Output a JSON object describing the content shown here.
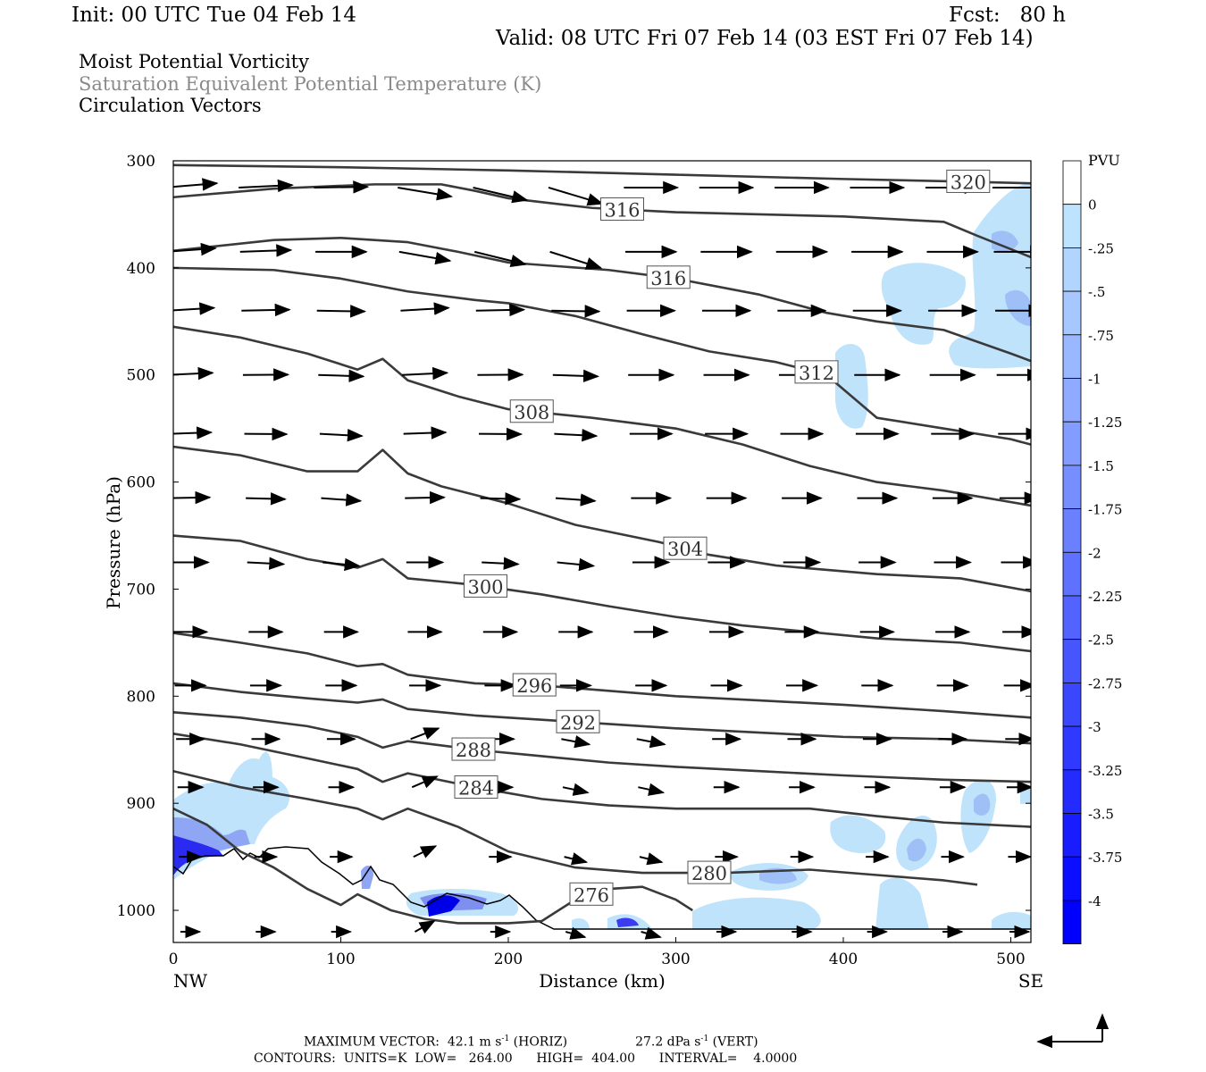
{
  "header": {
    "init": "Init: 00 UTC Tue 04 Feb 14",
    "fcst": "Fcst:   80 h",
    "valid": "Valid: 08 UTC Fri 07 Feb 14 (03 EST Fri 07 Feb 14)",
    "field1": "Moist Potential Vorticity",
    "field2": "Saturation Equivalent Potential Temperature (K)",
    "field3": "Circulation Vectors"
  },
  "footer": {
    "line1a": "MAXIMUM VECTOR:  42.1 m s",
    "line1b": " (HORIZ)",
    "line1c": "27.2 dPa s",
    "line1d": " (VERT)",
    "exp": "-1",
    "line2": "CONTOURS:  UNITS=K  LOW=   264.00      HIGH=  404.00      INTERVAL=    4.0000"
  },
  "colors": {
    "contour": "#3a3a3a",
    "pv_light": "#bfe3fb",
    "pv_dark": "#0000ff"
  },
  "chart_data": {
    "type": "heatmap",
    "xlabel": "Distance (km)",
    "ylabel": "Pressure (hPa)",
    "xlim": [
      0,
      512
    ],
    "ylim": [
      1030,
      300
    ],
    "x_ticks": [
      0,
      100,
      200,
      300,
      400,
      500
    ],
    "y_ticks": [
      300,
      400,
      500,
      600,
      700,
      800,
      900,
      1000
    ],
    "x_end_labels": [
      "NW",
      "SE"
    ],
    "colorbar": {
      "unit": "PVU",
      "levels": [
        "0",
        "-.25",
        "-.5",
        "-.75",
        "-1",
        "-1.25",
        "-1.5",
        "-1.75",
        "-2",
        "-2.25",
        "-2.5",
        "-2.75",
        "-3",
        "-3.25",
        "-3.5",
        "-3.75",
        "-4"
      ]
    },
    "contours": [
      {
        "level": 320,
        "label": "320",
        "points": [
          [
            0,
            304
          ],
          [
            100,
            306
          ],
          [
            200,
            309
          ],
          [
            300,
            313
          ],
          [
            400,
            317
          ],
          [
            460,
            319
          ],
          [
            512,
            321
          ]
        ]
      },
      {
        "level": 316,
        "label": "316",
        "points": [
          [
            0,
            334
          ],
          [
            60,
            326
          ],
          [
            120,
            322
          ],
          [
            160,
            322
          ],
          [
            180,
            328
          ],
          [
            200,
            335
          ],
          [
            250,
            344
          ],
          [
            300,
            348
          ],
          [
            350,
            350
          ],
          [
            400,
            352
          ],
          [
            460,
            357
          ],
          [
            480,
            370
          ],
          [
            512,
            390
          ]
        ]
      },
      {
        "level": 316,
        "label": "316",
        "points": [
          [
            0,
            384
          ],
          [
            60,
            374
          ],
          [
            100,
            372
          ],
          [
            140,
            376
          ],
          [
            170,
            385
          ],
          [
            200,
            395
          ],
          [
            260,
            402
          ],
          [
            300,
            410
          ],
          [
            350,
            425
          ],
          [
            390,
            442
          ],
          [
            420,
            450
          ],
          [
            460,
            458
          ],
          [
            500,
            480
          ],
          [
            512,
            487
          ]
        ]
      },
      {
        "level": 312,
        "label": "312",
        "points": [
          [
            0,
            400
          ],
          [
            60,
            402
          ],
          [
            100,
            410
          ],
          [
            140,
            422
          ],
          [
            180,
            430
          ],
          [
            200,
            433
          ],
          [
            240,
            445
          ],
          [
            280,
            462
          ],
          [
            320,
            478
          ],
          [
            360,
            488
          ],
          [
            390,
            500
          ],
          [
            420,
            540
          ],
          [
            460,
            550
          ],
          [
            500,
            560
          ],
          [
            512,
            565
          ]
        ]
      },
      {
        "level": 308,
        "label": "308",
        "points": [
          [
            0,
            455
          ],
          [
            40,
            465
          ],
          [
            80,
            480
          ],
          [
            110,
            495
          ],
          [
            125,
            485
          ],
          [
            140,
            505
          ],
          [
            170,
            520
          ],
          [
            200,
            532
          ],
          [
            250,
            540
          ],
          [
            300,
            550
          ],
          [
            340,
            565
          ],
          [
            380,
            585
          ],
          [
            420,
            600
          ],
          [
            460,
            608
          ],
          [
            512,
            622
          ]
        ]
      },
      {
        "level": 304,
        "label": "304",
        "points": [
          [
            0,
            567
          ],
          [
            40,
            575
          ],
          [
            80,
            590
          ],
          [
            110,
            590
          ],
          [
            125,
            570
          ],
          [
            140,
            592
          ],
          [
            160,
            604
          ],
          [
            200,
            620
          ],
          [
            240,
            640
          ],
          [
            290,
            656
          ],
          [
            320,
            668
          ],
          [
            360,
            678
          ],
          [
            420,
            686
          ],
          [
            470,
            690
          ],
          [
            512,
            702
          ]
        ]
      },
      {
        "level": 300,
        "label": "300",
        "points": [
          [
            0,
            650
          ],
          [
            40,
            655
          ],
          [
            80,
            672
          ],
          [
            110,
            680
          ],
          [
            125,
            672
          ],
          [
            140,
            690
          ],
          [
            180,
            696
          ],
          [
            220,
            705
          ],
          [
            260,
            716
          ],
          [
            300,
            726
          ],
          [
            340,
            734
          ],
          [
            380,
            740
          ],
          [
            420,
            746
          ],
          [
            470,
            750
          ],
          [
            512,
            758
          ]
        ]
      },
      {
        "level": 296,
        "label": "296",
        "points": [
          [
            0,
            741
          ],
          [
            40,
            750
          ],
          [
            80,
            760
          ],
          [
            110,
            772
          ],
          [
            125,
            770
          ],
          [
            140,
            780
          ],
          [
            180,
            788
          ],
          [
            220,
            790
          ],
          [
            260,
            795
          ],
          [
            300,
            800
          ],
          [
            350,
            804
          ],
          [
            400,
            808
          ],
          [
            460,
            814
          ],
          [
            512,
            820
          ]
        ]
      },
      {
        "level": 292,
        "label": "292",
        "points": [
          [
            0,
            788
          ],
          [
            40,
            796
          ],
          [
            80,
            802
          ],
          [
            110,
            806
          ],
          [
            125,
            803
          ],
          [
            140,
            812
          ],
          [
            180,
            818
          ],
          [
            220,
            822
          ],
          [
            260,
            826
          ],
          [
            300,
            830
          ],
          [
            350,
            834
          ],
          [
            400,
            838
          ],
          [
            460,
            840
          ],
          [
            512,
            844
          ]
        ]
      },
      {
        "level": 288,
        "label": "288",
        "points": [
          [
            0,
            815
          ],
          [
            40,
            820
          ],
          [
            80,
            828
          ],
          [
            110,
            838
          ],
          [
            125,
            848
          ],
          [
            140,
            842
          ],
          [
            180,
            850
          ],
          [
            220,
            856
          ],
          [
            260,
            862
          ],
          [
            300,
            866
          ],
          [
            350,
            870
          ],
          [
            400,
            874
          ],
          [
            460,
            878
          ],
          [
            512,
            880
          ]
        ]
      },
      {
        "level": 284,
        "label": "284",
        "points": [
          [
            0,
            835
          ],
          [
            40,
            845
          ],
          [
            80,
            858
          ],
          [
            110,
            868
          ],
          [
            125,
            880
          ],
          [
            140,
            872
          ],
          [
            180,
            885
          ],
          [
            220,
            896
          ],
          [
            260,
            902
          ],
          [
            300,
            905
          ],
          [
            340,
            905
          ],
          [
            380,
            905
          ],
          [
            420,
            912
          ],
          [
            460,
            918
          ],
          [
            512,
            922
          ]
        ]
      },
      {
        "level": 280,
        "label": "280",
        "points": [
          [
            0,
            870
          ],
          [
            40,
            885
          ],
          [
            80,
            896
          ],
          [
            110,
            905
          ],
          [
            125,
            915
          ],
          [
            140,
            905
          ],
          [
            170,
            922
          ],
          [
            200,
            945
          ],
          [
            240,
            960
          ],
          [
            280,
            965
          ],
          [
            330,
            965
          ],
          [
            380,
            962
          ],
          [
            420,
            967
          ],
          [
            460,
            972
          ],
          [
            480,
            976
          ]
        ]
      },
      {
        "level": 276,
        "label": "276",
        "points": [
          [
            0,
            905
          ],
          [
            20,
            920
          ],
          [
            40,
            945
          ],
          [
            60,
            960
          ],
          [
            80,
            980
          ],
          [
            100,
            995
          ],
          [
            110,
            985
          ],
          [
            130,
            1000
          ],
          [
            150,
            1008
          ],
          [
            170,
            1012
          ],
          [
            200,
            1012
          ],
          [
            220,
            1010
          ],
          [
            240,
            990
          ],
          [
            260,
            980
          ],
          [
            280,
            978
          ],
          [
            300,
            990
          ],
          [
            310,
            1000
          ]
        ]
      }
    ],
    "vector_rows_hpa": [
      325,
      385,
      440,
      500,
      555,
      615,
      675,
      740,
      790,
      840,
      885,
      950,
      1020
    ],
    "vectors_note": "Circulation vectors"
  }
}
